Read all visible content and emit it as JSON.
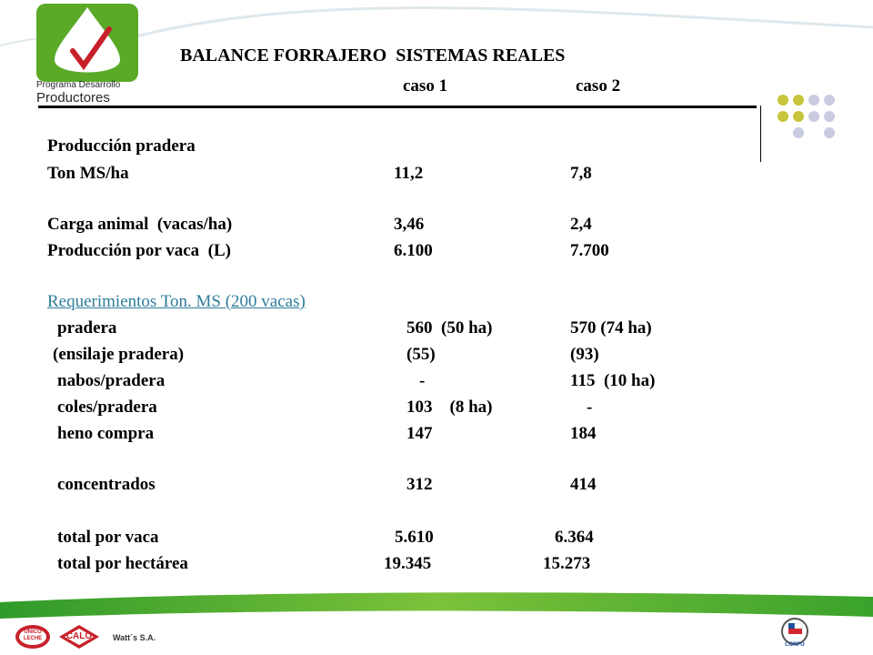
{
  "logo": {
    "line1": "Programa Desarrollo",
    "line2": "Productores"
  },
  "header": {
    "title": "BALANCE FORRAJERO  SISTEMAS REALES",
    "case1": "caso 1",
    "case2": "caso 2"
  },
  "rows": {
    "prod_pradera": "Producción pradera",
    "ton_ms": {
      "label": "Ton MS/ha",
      "c1": "11,2",
      "c2": "7,8"
    },
    "carga": {
      "label": "Carga animal  (vacas/ha)",
      "c1": "3,46",
      "c2": "2,4"
    },
    "prod_vaca": {
      "label": "Producción por vaca  (L)",
      "c1": "6.100",
      "c2": "7.700"
    },
    "req_title": "Requerimientos Ton. MS (200 vacas)",
    "pradera": {
      "label": "pradera",
      "c1": "560  (50 ha)",
      "c2": "570 (74 ha)"
    },
    "ensilaje": {
      "label": "(ensilaje pradera)",
      "c1": "(55)",
      "c2": "(93)"
    },
    "nabos": {
      "label": "nabos/pradera",
      "c1": "-",
      "c2": "115  (10 ha)"
    },
    "coles": {
      "label": "coles/pradera",
      "c1": "103    (8 ha)",
      "c2": "-"
    },
    "heno": {
      "label": "heno compra",
      "c1": "147",
      "c2": "184"
    },
    "concentrados": {
      "label": "concentrados",
      "c1": "312",
      "c2": "414"
    },
    "total_vaca": {
      "label": "total por vaca",
      "c1": "5.610",
      "c2": "6.364"
    },
    "total_ha": {
      "label": "total por hectárea",
      "c1": "19.345",
      "c2": "15.273"
    }
  },
  "footer": {
    "brand1": "UNICO LECHE",
    "brand2": "CALO",
    "company": "Watt´s S.A.",
    "corfo": "CORFO"
  },
  "colors": {
    "accent_green": "#5aaa28",
    "dot_yellow": "#c8c43a",
    "dot_grey": "#c9cbe0",
    "link_blue": "#2e7d9a"
  }
}
